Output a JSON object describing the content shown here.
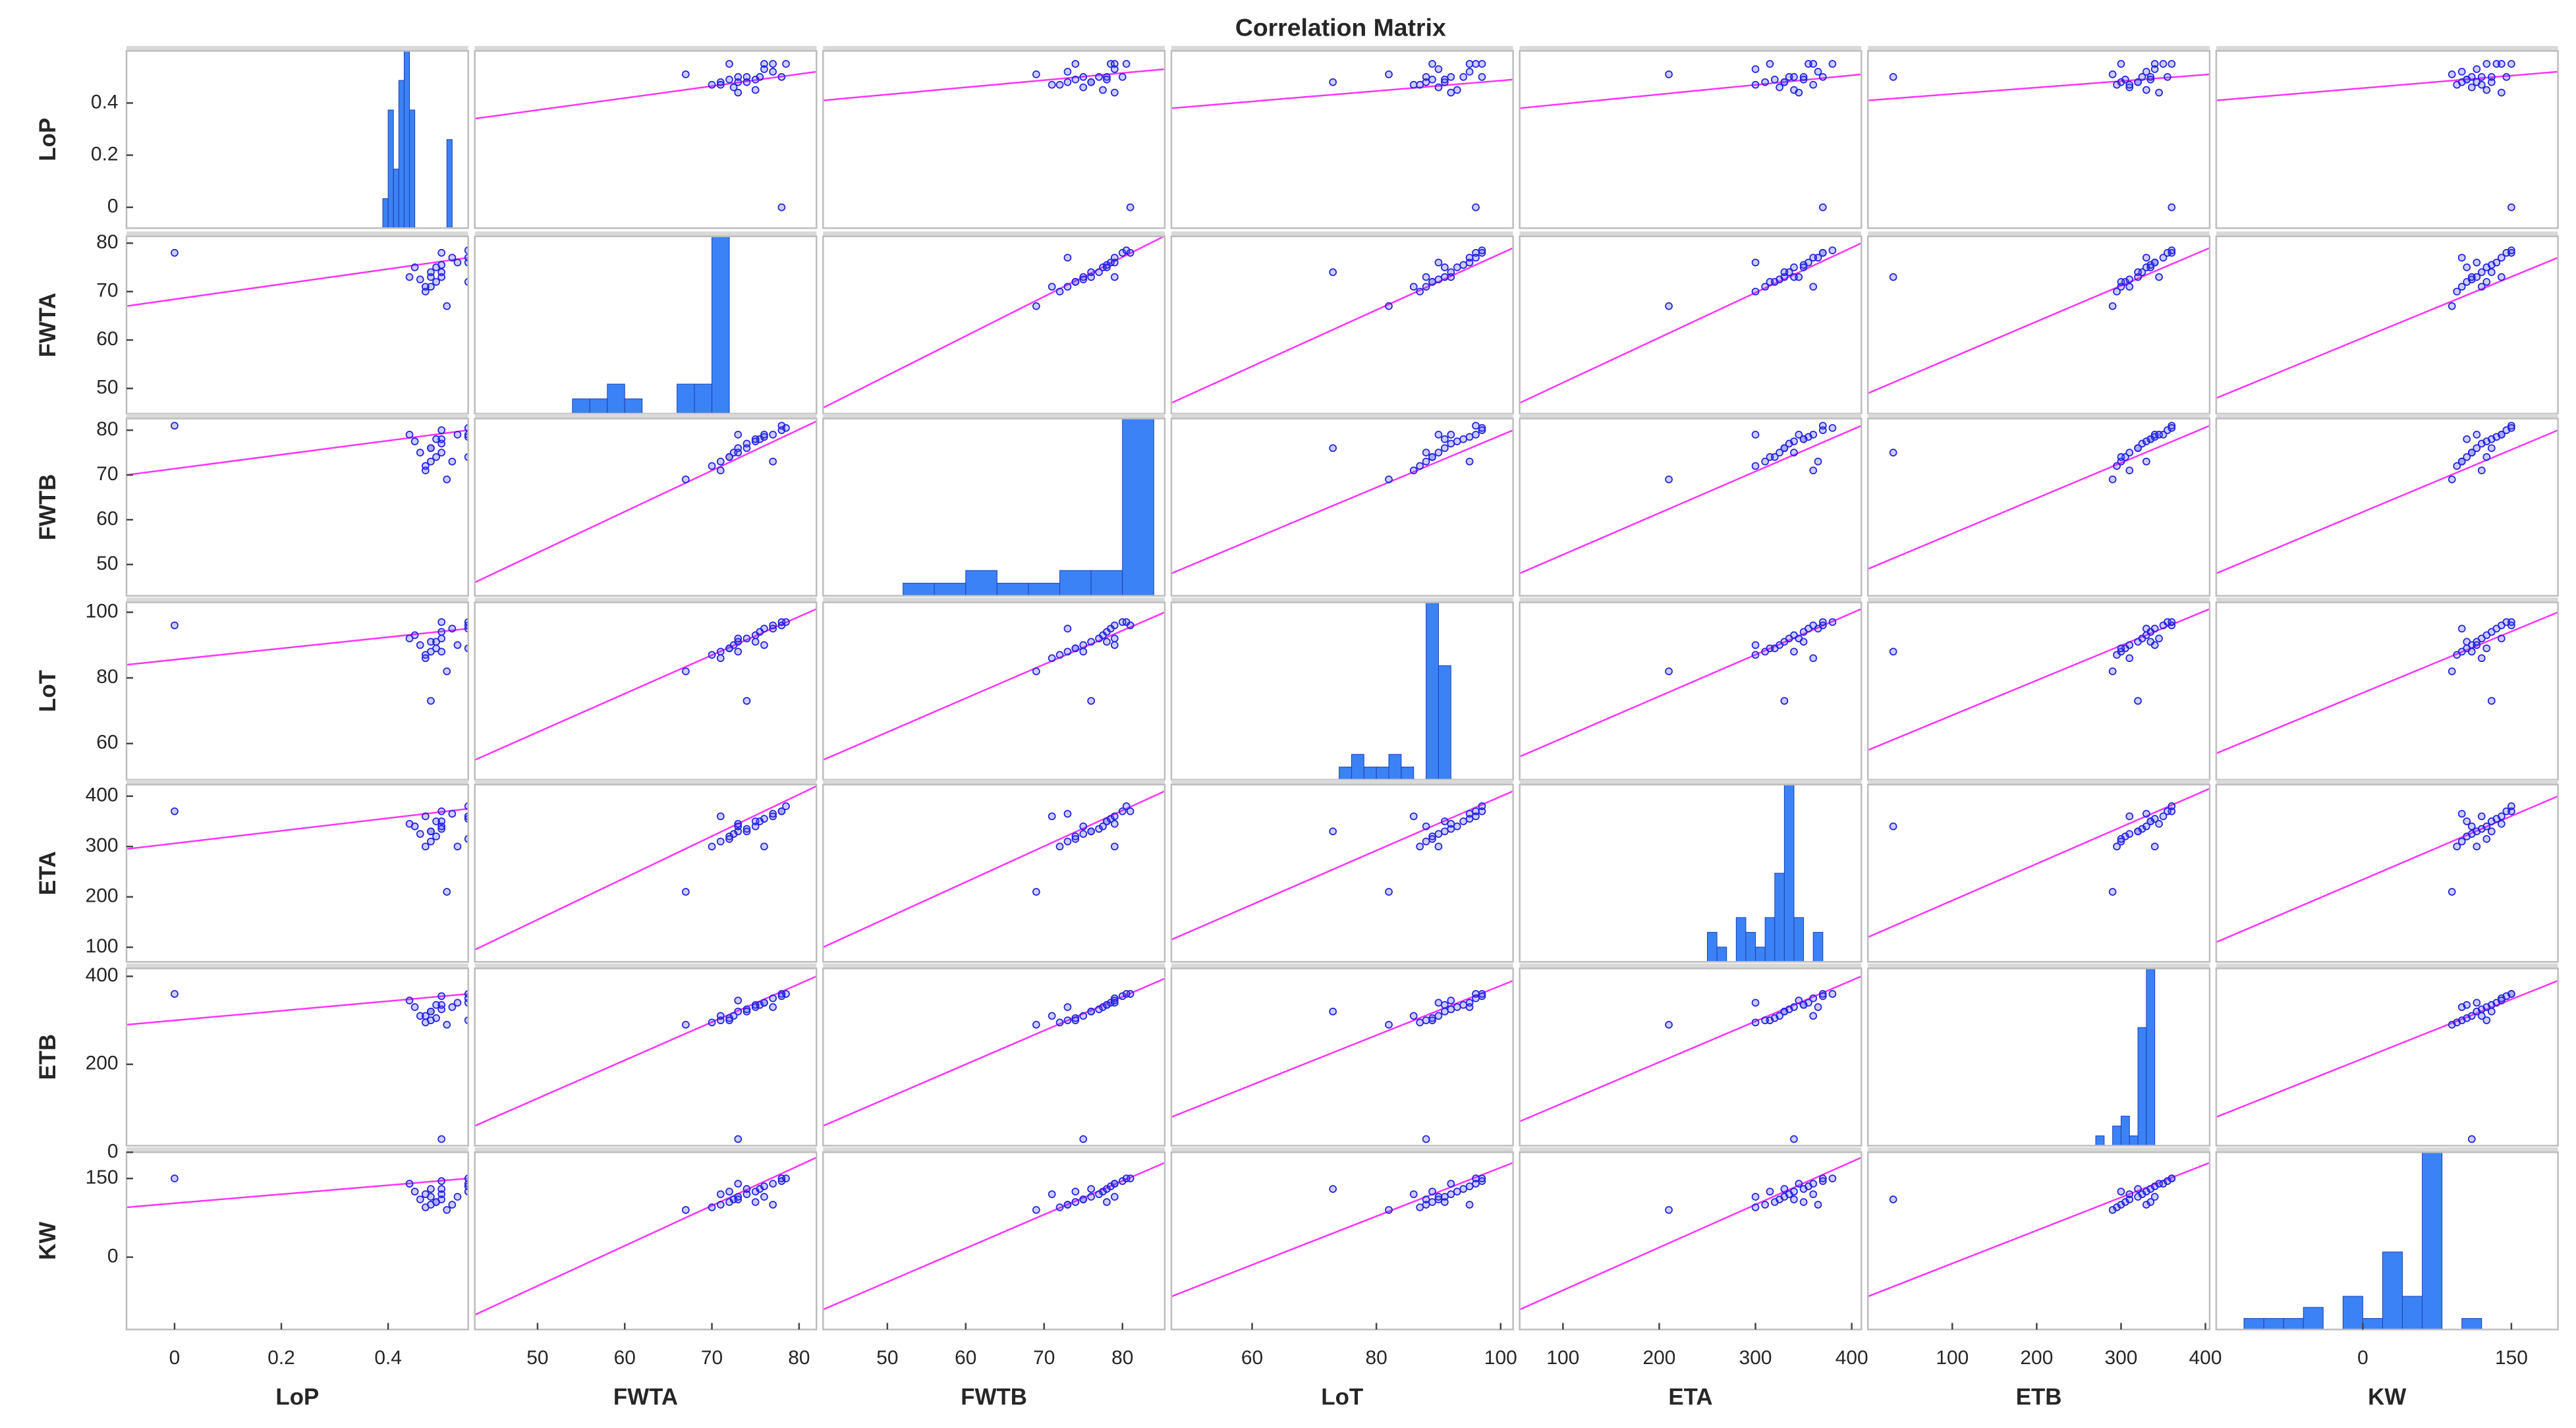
{
  "chart_data": {
    "type": "scatter-matrix",
    "title": "Correlation Matrix",
    "variables": [
      {
        "name": "LoP",
        "xlim": [
          -0.09,
          0.55
        ],
        "xticks": [
          0,
          0.2,
          0.4
        ],
        "ylim": [
          -0.08,
          0.6
        ],
        "yticks": [
          0,
          0.2,
          0.4
        ],
        "values": [
          0,
          0.47,
          0.48,
          0.49,
          0.46,
          0.48,
          0.5,
          0.45,
          0.5,
          0.55,
          0.55,
          0.5,
          0.55,
          0.48,
          0.51,
          0.5,
          0.53,
          0.47,
          0.44,
          0.52,
          0.49,
          0.55
        ],
        "hist": {
          "bins": [
            0.39,
            0.4,
            0.41,
            0.42,
            0.43,
            0.44,
            0.45,
            0.46,
            0.47,
            0.48,
            0.49,
            0.5,
            0.51,
            0.52,
            0.53
          ],
          "counts": [
            1,
            4,
            2,
            5,
            6,
            4,
            0,
            0,
            0,
            0,
            0,
            0,
            3,
            0
          ],
          "ylim": [
            0,
            6
          ]
        }
      },
      {
        "name": "FWTA",
        "xlim": [
          42.8,
          82
        ],
        "xticks": [
          50,
          60,
          70,
          80
        ],
        "ylim": [
          44.8,
          81.4
        ],
        "yticks": [
          50,
          60,
          70,
          80
        ],
        "values": [
          78,
          70,
          71,
          72,
          72.5,
          73,
          74,
          75,
          75.5,
          76,
          77,
          78,
          78.5,
          74,
          67,
          73,
          76,
          71,
          73,
          77,
          75,
          72
        ],
        "hist": {
          "bins": [
            54,
            56,
            58,
            60,
            62,
            64,
            66,
            68,
            70,
            72,
            74
          ],
          "counts": [
            1,
            1,
            2,
            1,
            0,
            0,
            2,
            2,
            12,
            0
          ],
          "ylim": [
            0,
            12
          ]
        }
      },
      {
        "name": "FWTB",
        "xlim": [
          41.8,
          85.4
        ],
        "xticks": [
          50,
          60,
          70,
          80
        ],
        "ylim": [
          43,
          82.6
        ],
        "yticks": [
          50,
          60,
          70,
          80
        ],
        "values": [
          81,
          72,
          73,
          74,
          75,
          76,
          77,
          77.5,
          78,
          78.5,
          79,
          80,
          80.5,
          76,
          69,
          75,
          79,
          71,
          79,
          73,
          78,
          74
        ],
        "hist": {
          "bins": [
            44,
            48,
            52,
            56,
            60,
            64,
            68,
            72,
            76,
            80,
            84
          ],
          "counts": [
            0,
            0,
            1,
            1,
            2,
            1,
            1,
            2,
            2,
            14
          ],
          "ylim": [
            0,
            14
          ]
        }
      },
      {
        "name": "LoT",
        "xlim": [
          47,
          102
        ],
        "xticks": [
          60,
          80,
          100
        ],
        "ylim": [
          49,
          103
        ],
        "yticks": [
          60,
          80,
          100
        ],
        "values": [
          96,
          87,
          88,
          89,
          90,
          91,
          92,
          93,
          94,
          95,
          96,
          97,
          97,
          73,
          82,
          88,
          90,
          86,
          92,
          95,
          91,
          89
        ],
        "hist": {
          "bins": [
            74,
            76,
            78,
            80,
            82,
            84,
            86,
            88,
            90,
            92
          ],
          "counts": [
            1,
            2,
            1,
            1,
            2,
            1,
            0,
            14,
            9
          ],
          "ylim": [
            0,
            14
          ]
        }
      },
      {
        "name": "ETA",
        "xlim": [
          55,
          410
        ],
        "xticks": [
          100,
          200,
          300,
          400
        ],
        "ylim": [
          71,
          423
        ],
        "yticks": [
          100,
          200,
          300,
          400
        ],
        "values": [
          370,
          300,
          310,
          320,
          325,
          330,
          335,
          340,
          350,
          355,
          360,
          370,
          380,
          330,
          210,
          340,
          300,
          360,
          345,
          365,
          350,
          315
        ],
        "hist": {
          "bins": [
            250,
            260,
            270,
            280,
            290,
            300,
            310,
            320,
            330,
            340,
            350,
            360,
            370,
            380
          ],
          "counts": [
            2,
            1,
            0,
            3,
            2,
            1,
            3,
            6,
            12,
            3,
            0,
            2,
            0
          ],
          "ylim": [
            0,
            12
          ]
        }
      },
      {
        "name": "ETB",
        "xlim": [
          0,
          405
        ],
        "xticks": [
          100,
          200,
          300,
          400
        ],
        "ylim": [
          15,
          418
        ],
        "yticks": [
          0,
          200,
          400
        ],
        "values": [
          360,
          295,
          300,
          305,
          310,
          320,
          325,
          330,
          335,
          340,
          350,
          355,
          360,
          320,
          290,
          30,
          340,
          310,
          345,
          330,
          335,
          300
        ],
        "hist": {
          "bins": [
            270,
            280,
            290,
            300,
            310,
            320,
            330,
            340
          ],
          "counts": [
            1,
            0,
            2,
            3,
            1,
            12,
            18
          ],
          "ylim": [
            0,
            18
          ]
        }
      },
      {
        "name": "KW",
        "xlim": [
          -148,
          197
        ],
        "xticks": [
          0,
          150
        ],
        "ylim": [
          -138,
          200
        ],
        "yticks": [
          0,
          150
        ],
        "values": [
          150,
          95,
          100,
          105,
          110,
          115,
          120,
          125,
          130,
          135,
          140,
          145,
          150,
          130,
          90,
          110,
          115,
          120,
          140,
          100,
          105,
          125
        ],
        "hist": {
          "bins": [
            -120,
            -100,
            -80,
            -60,
            -40,
            -20,
            0,
            20,
            40,
            60,
            80,
            100,
            120
          ],
          "counts": [
            1,
            1,
            1,
            2,
            0,
            3,
            1,
            7,
            3,
            16,
            0,
            1
          ],
          "ylim": [
            0,
            16
          ]
        }
      }
    ],
    "fits": [
      [
        null,
        [
          0.34,
          0.52
        ],
        [
          0.41,
          0.53
        ],
        [
          0.38,
          0.49
        ],
        [
          0.38,
          0.51
        ],
        [
          0.41,
          0.51
        ],
        [
          0.41,
          0.52
        ]
      ],
      [
        [
          67,
          77
        ],
        null,
        [
          46,
          81.5
        ],
        [
          47,
          79
        ],
        [
          47,
          80
        ],
        [
          49,
          79
        ],
        [
          48,
          77
        ]
      ],
      [
        [
          70,
          80
        ],
        [
          46,
          82
        ],
        null,
        [
          48,
          80
        ],
        [
          48,
          81
        ],
        [
          49,
          81
        ],
        [
          48,
          80
        ]
      ],
      [
        [
          84,
          95
        ],
        [
          55,
          101
        ],
        [
          55,
          100
        ],
        null,
        [
          56,
          101
        ],
        [
          58,
          101
        ],
        [
          57,
          100
        ]
      ],
      [
        [
          295,
          375
        ],
        [
          95,
          420
        ],
        [
          100,
          410
        ],
        [
          115,
          410
        ],
        null,
        [
          120,
          415
        ],
        [
          110,
          400
        ]
      ],
      [
        [
          290,
          360
        ],
        [
          60,
          400
        ],
        [
          60,
          395
        ],
        [
          80,
          390
        ],
        [
          70,
          400
        ],
        null,
        [
          80,
          390
        ]
      ],
      [
        [
          95,
          150
        ],
        [
          -110,
          190
        ],
        [
          -100,
          180
        ],
        [
          -75,
          180
        ],
        [
          -100,
          190
        ],
        [
          -75,
          180
        ],
        null
      ]
    ],
    "point_color": "#2222dd",
    "fit_color": "#ff33ff",
    "bar_color": "#3b82f6"
  }
}
